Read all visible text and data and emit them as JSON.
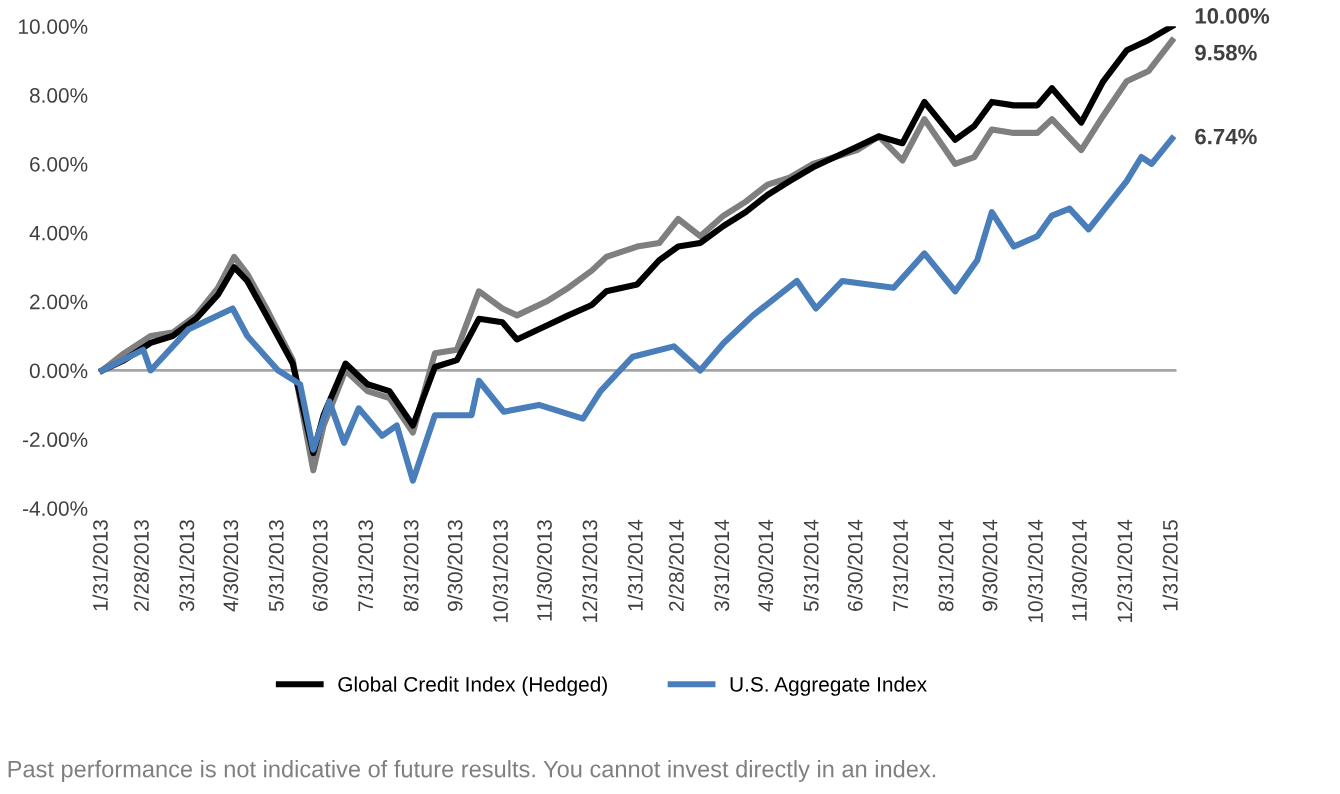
{
  "chart_data": {
    "type": "line",
    "ylim": [
      -4,
      10
    ],
    "yticks": [
      {
        "value": -4,
        "label": "-4.00%"
      },
      {
        "value": -2,
        "label": "-2.00%"
      },
      {
        "value": 0,
        "label": "0.00%"
      },
      {
        "value": 2,
        "label": "2.00%"
      },
      {
        "value": 4,
        "label": "4.00%"
      },
      {
        "value": 6,
        "label": "6.00%"
      },
      {
        "value": 8,
        "label": "8.00%"
      },
      {
        "value": 10,
        "label": "10.00%"
      }
    ],
    "xlim": [
      "2013-01-28",
      "2015-02-03"
    ],
    "xticks": [
      {
        "value": "2013-01-31",
        "label": "1/31/2013"
      },
      {
        "value": "2013-02-28",
        "label": "2/28/2013"
      },
      {
        "value": "2013-03-31",
        "label": "3/31/2013"
      },
      {
        "value": "2013-04-30",
        "label": "4/30/2013"
      },
      {
        "value": "2013-05-31",
        "label": "5/31/2013"
      },
      {
        "value": "2013-06-30",
        "label": "6/30/2013"
      },
      {
        "value": "2013-07-31",
        "label": "7/31/2013"
      },
      {
        "value": "2013-08-31",
        "label": "8/31/2013"
      },
      {
        "value": "2013-09-30",
        "label": "9/30/2013"
      },
      {
        "value": "2013-10-31",
        "label": "10/31/2013"
      },
      {
        "value": "2013-11-30",
        "label": "11/30/2013"
      },
      {
        "value": "2013-12-31",
        "label": "12/31/2013"
      },
      {
        "value": "2014-01-31",
        "label": "1/31/2014"
      },
      {
        "value": "2014-02-28",
        "label": "2/28/2014"
      },
      {
        "value": "2014-03-31",
        "label": "3/31/2014"
      },
      {
        "value": "2014-04-30",
        "label": "4/30/2014"
      },
      {
        "value": "2014-05-31",
        "label": "5/31/2014"
      },
      {
        "value": "2014-06-30",
        "label": "6/30/2014"
      },
      {
        "value": "2014-07-31",
        "label": "7/31/2014"
      },
      {
        "value": "2014-08-31",
        "label": "8/31/2014"
      },
      {
        "value": "2014-09-30",
        "label": "9/30/2014"
      },
      {
        "value": "2014-10-31",
        "label": "10/31/2014"
      },
      {
        "value": "2014-11-30",
        "label": "11/30/2014"
      },
      {
        "value": "2014-12-31",
        "label": "12/31/2014"
      },
      {
        "value": "2015-01-31",
        "label": "1/31/2015"
      }
    ],
    "series": [
      {
        "color": "#7f7f7f",
        "x": [
          "2013-01-31",
          "2013-02-15",
          "2013-03-05",
          "2013-03-20",
          "2013-04-05",
          "2013-04-20",
          "2013-05-01",
          "2013-05-10",
          "2013-05-23",
          "2013-06-10",
          "2013-06-24",
          "2013-07-01",
          "2013-07-16",
          "2013-07-31",
          "2013-08-15",
          "2013-08-31",
          "2013-09-15",
          "2013-09-30",
          "2013-10-15",
          "2013-10-31",
          "2013-11-10",
          "2013-11-30",
          "2013-12-15",
          "2013-12-31",
          "2014-01-10",
          "2014-01-31",
          "2014-02-15",
          "2014-02-28",
          "2014-03-15",
          "2014-03-31",
          "2014-04-15",
          "2014-04-30",
          "2014-05-15",
          "2014-05-31",
          "2014-06-15",
          "2014-06-30",
          "2014-07-15",
          "2014-07-31",
          "2014-08-15",
          "2014-09-05",
          "2014-09-18",
          "2014-09-30",
          "2014-10-15",
          "2014-10-31",
          "2014-11-10",
          "2014-11-30",
          "2014-12-15",
          "2014-12-31",
          "2015-01-15",
          "2015-01-31"
        ],
        "values": [
          0.0,
          0.5,
          1.0,
          1.1,
          1.6,
          2.4,
          3.3,
          2.8,
          1.8,
          0.3,
          -2.9,
          -1.6,
          0.0,
          -0.6,
          -0.8,
          -1.8,
          0.5,
          0.6,
          2.3,
          1.8,
          1.6,
          2.0,
          2.4,
          2.9,
          3.3,
          3.6,
          3.7,
          4.4,
          3.9,
          4.5,
          4.9,
          5.4,
          5.6,
          6.0,
          6.2,
          6.4,
          6.8,
          6.1,
          7.3,
          6.0,
          6.2,
          7.0,
          6.9,
          6.9,
          7.3,
          6.4,
          7.4,
          8.4,
          8.7,
          9.58
        ]
      },
      {
        "name": "Global Credit Index (Hedged)",
        "color": "#000000",
        "x": [
          "2013-01-31",
          "2013-02-15",
          "2013-03-05",
          "2013-03-20",
          "2013-04-05",
          "2013-04-20",
          "2013-05-01",
          "2013-05-10",
          "2013-05-23",
          "2013-06-10",
          "2013-06-24",
          "2013-07-01",
          "2013-07-16",
          "2013-07-31",
          "2013-08-15",
          "2013-08-31",
          "2013-09-15",
          "2013-09-30",
          "2013-10-15",
          "2013-10-31",
          "2013-11-10",
          "2013-11-30",
          "2013-12-15",
          "2013-12-31",
          "2014-01-10",
          "2014-01-31",
          "2014-02-15",
          "2014-02-28",
          "2014-03-15",
          "2014-03-31",
          "2014-04-15",
          "2014-04-30",
          "2014-05-15",
          "2014-05-31",
          "2014-06-15",
          "2014-06-30",
          "2014-07-15",
          "2014-07-31",
          "2014-08-15",
          "2014-09-05",
          "2014-09-18",
          "2014-09-30",
          "2014-10-15",
          "2014-10-31",
          "2014-11-10",
          "2014-11-30",
          "2014-12-15",
          "2014-12-31",
          "2015-01-15",
          "2015-01-31"
        ],
        "values": [
          0.0,
          0.3,
          0.8,
          1.0,
          1.5,
          2.2,
          3.0,
          2.6,
          1.6,
          0.2,
          -2.4,
          -1.3,
          0.2,
          -0.4,
          -0.6,
          -1.6,
          0.1,
          0.3,
          1.5,
          1.4,
          0.9,
          1.3,
          1.6,
          1.9,
          2.3,
          2.5,
          3.2,
          3.6,
          3.7,
          4.2,
          4.6,
          5.1,
          5.5,
          5.9,
          6.2,
          6.5,
          6.8,
          6.6,
          7.8,
          6.7,
          7.1,
          7.8,
          7.7,
          7.7,
          8.2,
          7.2,
          8.4,
          9.3,
          9.6,
          10.0
        ]
      },
      {
        "name": "U.S. Aggregate Index",
        "color": "#4a7ebb",
        "x": [
          "2013-01-31",
          "2013-02-28",
          "2013-03-05",
          "2013-03-31",
          "2013-04-30",
          "2013-05-10",
          "2013-05-31",
          "2013-06-15",
          "2013-06-24",
          "2013-07-05",
          "2013-07-15",
          "2013-07-25",
          "2013-08-10",
          "2013-08-20",
          "2013-08-31",
          "2013-09-15",
          "2013-10-10",
          "2013-10-15",
          "2013-11-01",
          "2013-11-25",
          "2013-12-25",
          "2014-01-06",
          "2014-01-28",
          "2014-02-25",
          "2014-03-15",
          "2014-03-31",
          "2014-04-20",
          "2014-05-20",
          "2014-06-02",
          "2014-06-20",
          "2014-07-25",
          "2014-08-15",
          "2014-09-05",
          "2014-09-20",
          "2014-09-30",
          "2014-10-15",
          "2014-10-31",
          "2014-11-10",
          "2014-11-22",
          "2014-12-05",
          "2014-12-31",
          "2015-01-10",
          "2015-01-17",
          "2015-01-31"
        ],
        "values": [
          0.0,
          0.6,
          0.0,
          1.2,
          1.8,
          1.0,
          0.0,
          -0.4,
          -2.3,
          -0.9,
          -2.1,
          -1.1,
          -1.9,
          -1.6,
          -3.2,
          -1.3,
          -1.3,
          -0.3,
          -1.2,
          -1.0,
          -1.4,
          -0.6,
          0.4,
          0.7,
          0.0,
          0.8,
          1.6,
          2.6,
          1.8,
          2.6,
          2.4,
          3.4,
          2.3,
          3.2,
          4.6,
          3.6,
          3.9,
          4.5,
          4.7,
          4.1,
          5.5,
          6.2,
          6.0,
          6.74
        ]
      }
    ],
    "ref_lines": [
      {
        "axis": "y",
        "value": 0,
        "color": "#a6a6a6"
      }
    ],
    "annotations": [
      {
        "text": "10.00%",
        "x": "2015-01-31",
        "y": 10.0
      },
      {
        "text": "9.58%",
        "x": "2015-01-31",
        "y": 9.58
      },
      {
        "text": "6.74%",
        "x": "2015-01-31",
        "y": 6.74
      },
      "Past performance is not indicative of future results. You cannot invest directly in an index."
    ],
    "legend": "bottom",
    "grid": false,
    "marker": "none",
    "line_style": "solid"
  }
}
